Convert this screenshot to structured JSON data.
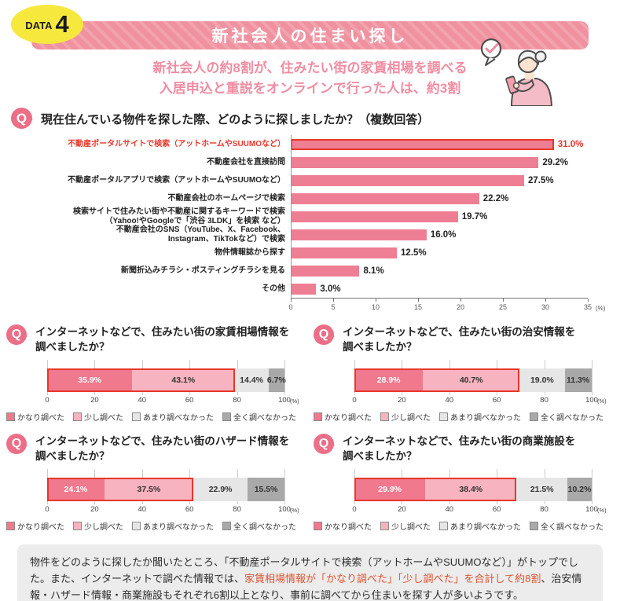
{
  "q_label": "Q",
  "header": {
    "badge_label": "DATA",
    "badge_number": "4",
    "title": "新社会人の住まい探し",
    "subtitle_line1": "新社会人の約8割が、住みたい街の家賃相場を調べる",
    "subtitle_line2": "入居申込と重説をオンラインで行った人は、約3割"
  },
  "colors": {
    "banner_pink": "#f0919f",
    "badge_yellow": "#f7e83e",
    "q_icon_pink": "#ec6e87",
    "subtitle_pink": "#ef8da2",
    "bar_pink": "#ee7e93",
    "accent_red": "#e8372a",
    "note_red": "#dd5330",
    "note_bg": "#ececec"
  },
  "legend": {
    "items": [
      {
        "label": "かなり調べた",
        "color": "#f0798e"
      },
      {
        "label": "少し調べた",
        "color": "#f7b3bf"
      },
      {
        "label": "あまり調べなかった",
        "color": "#e6e6e6"
      },
      {
        "label": "全く調べなかった",
        "color": "#a9a9a9"
      }
    ]
  },
  "chart_data": [
    {
      "type": "bar",
      "orientation": "horizontal",
      "title": "現在住んでいる物件を探した際、どのように探しましたか？（複数回答）",
      "categories": [
        "不動産ポータルサイトで検索（アットホームやSUUMOなど）",
        "不動産会社を直接訪問",
        "不動産ポータルアプリで検索（アットホームやSUUMOなど）",
        "不動産会社のホームページで検索",
        "検索サイトで住みたい街や不動産に関するキーワードで検索\n（Yahoo!やGoogleで「渋谷 3LDK」を検索 など）",
        "不動産会社のSNS（YouTube、X、Facebook、\nInstagram、TikTokなど）で検索",
        "物件情報誌から探す",
        "新聞折込みチラシ・ポスティングチラシを見る",
        "その他"
      ],
      "values": [
        31.0,
        29.2,
        27.5,
        22.2,
        19.7,
        16.0,
        12.5,
        8.1,
        3.0
      ],
      "value_labels": [
        "31.0%",
        "29.2%",
        "27.5%",
        "22.2%",
        "19.7%",
        "16.0%",
        "12.5%",
        "8.1%",
        "3.0%"
      ],
      "xlim": [
        0,
        35
      ],
      "x_ticks": [
        0,
        5,
        10,
        15,
        20,
        25,
        30,
        35
      ],
      "x_unit": "(%)",
      "highlight_index": 0
    },
    {
      "type": "bar",
      "stacked": true,
      "title": "インターネットなどで、住みたい街の家賃相場情報を\n調べましたか？",
      "categories": [
        "かなり調べた",
        "少し調べた",
        "あまり調べなかった",
        "全く調べなかった"
      ],
      "values": [
        35.9,
        43.1,
        14.4,
        6.7
      ],
      "value_labels": [
        "35.9%",
        "43.1%",
        "14.4%",
        "6.7%"
      ],
      "xlim": [
        0,
        100
      ],
      "x_ticks": [
        0,
        20,
        40,
        60,
        80,
        100
      ],
      "x_unit": "(%)",
      "highlight_span_percent": 79.0
    },
    {
      "type": "bar",
      "stacked": true,
      "title": "インターネットなどで、住みたい街の治安情報を\n調べましたか？",
      "categories": [
        "かなり調べた",
        "少し調べた",
        "あまり調べなかった",
        "全く調べなかった"
      ],
      "values": [
        28.9,
        40.7,
        19.0,
        11.3
      ],
      "value_labels": [
        "28.9%",
        "40.7%",
        "19.0%",
        "11.3%"
      ],
      "xlim": [
        0,
        100
      ],
      "x_ticks": [
        0,
        20,
        40,
        60,
        80,
        100
      ],
      "x_unit": "(%)",
      "highlight_span_percent": 69.6
    },
    {
      "type": "bar",
      "stacked": true,
      "title": "インターネットなどで、住みたい街のハザード情報を\n調べましたか？",
      "categories": [
        "かなり調べた",
        "少し調べた",
        "あまり調べなかった",
        "全く調べなかった"
      ],
      "values": [
        24.1,
        37.5,
        22.9,
        15.5
      ],
      "value_labels": [
        "24.1%",
        "37.5%",
        "22.9%",
        "15.5%"
      ],
      "xlim": [
        0,
        100
      ],
      "x_ticks": [
        0,
        20,
        40,
        60,
        80,
        100
      ],
      "x_unit": "(%)",
      "highlight_span_percent": 61.6
    },
    {
      "type": "bar",
      "stacked": true,
      "title": "インターネットなどで、住みたい街の商業施設を\n調べましたか？",
      "categories": [
        "かなり調べた",
        "少し調べた",
        "あまり調べなかった",
        "全く調べなかった"
      ],
      "values": [
        29.9,
        38.4,
        21.5,
        10.2
      ],
      "value_labels": [
        "29.9%",
        "38.4%",
        "21.5%",
        "10.2%"
      ],
      "xlim": [
        0,
        100
      ],
      "x_ticks": [
        0,
        20,
        40,
        60,
        80,
        100
      ],
      "x_unit": "(%)",
      "highlight_span_percent": 68.3
    }
  ],
  "footer": {
    "text_before": "物件をどのように探したか聞いたところ、「不動産ポータルサイトで検索（アットホームやSUUMOなど）」がトップでした。また、インターネットで調べた情報では、",
    "text_highlight": "家賃相場情報が「かなり調べた」「少し調べた」を合計して約8割",
    "text_after": "、治安情報・ハザード情報・商業施設もそれぞれ6割以上となり、事前に調べてから住まいを探す人が多いようです。"
  }
}
